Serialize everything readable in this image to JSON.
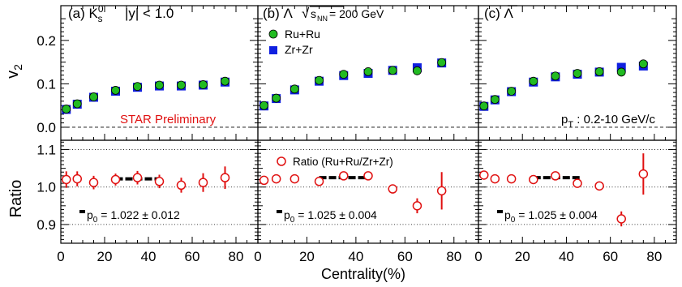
{
  "colors": {
    "ru": "#22bb22",
    "zr": "#1020e0",
    "ratio": "#e01010",
    "preliminary": "#e01010",
    "axis": "#000000"
  },
  "labels": {
    "xlabel": "Centrality(%)",
    "ylabel_top": "v₂",
    "ylabel_bottom": "Ratio",
    "preliminary": "STAR Preliminary",
    "pt_range": "p_T : 0.2-10 GeV/c",
    "energy": "√s_NN = 200 GeV",
    "legend_ru": "Ru+Ru",
    "legend_zr": "Zr+Zr",
    "legend_ratio": "Ratio (Ru+Ru/Zr+Zr)"
  },
  "chart_data": [
    {
      "type": "scatter",
      "panel": "(a) K_s^0",
      "title": "(a) K⁰s",
      "subtitle": "|y| < 1.0",
      "xlim": [
        0,
        90
      ],
      "top": {
        "ylabel": "v₂",
        "ylim": [
          -0.03,
          0.28
        ],
        "yticks": [
          "0.0",
          "0.1",
          "0.2"
        ],
        "series": [
          {
            "name": "Ru+Ru",
            "x": [
              2.5,
              7.5,
              15,
              25,
              35,
              45,
              55,
              65,
              75
            ],
            "values": [
              0.042,
              0.054,
              0.07,
              0.085,
              0.094,
              0.097,
              0.097,
              0.098,
              0.106
            ]
          },
          {
            "name": "Zr+Zr",
            "x": [
              2.5,
              7.5,
              15,
              25,
              35,
              45,
              55,
              65,
              75
            ],
            "values": [
              0.041,
              0.053,
              0.069,
              0.083,
              0.092,
              0.095,
              0.095,
              0.097,
              0.104
            ]
          }
        ]
      },
      "bottom": {
        "ylabel": "Ratio",
        "ylim": [
          0.85,
          1.125
        ],
        "yticks": [
          "0.9",
          "1.0",
          "1.1"
        ],
        "series": [
          {
            "name": "Ratio (Ru+Ru/Zr+Zr)",
            "x": [
              2.5,
              7.5,
              15,
              25,
              35,
              45,
              55,
              65,
              75
            ],
            "values": [
              1.02,
              1.022,
              1.012,
              1.02,
              1.025,
              1.015,
              1.005,
              1.012,
              1.025
            ],
            "errors": [
              0.022,
              0.02,
              0.018,
              0.016,
              0.018,
              0.018,
              0.02,
              0.025,
              0.03
            ]
          }
        ],
        "fit": {
          "label": "p₀ = 1.022 ± 0.012",
          "value": 1.022,
          "x": [
            25,
            46
          ]
        }
      }
    },
    {
      "type": "scatter",
      "panel": "(b) Λ",
      "title": "(b) Λ",
      "xlim": [
        0,
        90
      ],
      "top": {
        "ylim": [
          -0.03,
          0.28
        ],
        "series": [
          {
            "name": "Ru+Ru",
            "x": [
              2.5,
              7.5,
              15,
              25,
              35,
              45,
              55,
              65,
              75
            ],
            "values": [
              0.05,
              0.067,
              0.088,
              0.108,
              0.122,
              0.128,
              0.131,
              0.13,
              0.149
            ]
          },
          {
            "name": "Zr+Zr",
            "x": [
              2.5,
              7.5,
              15,
              25,
              35,
              45,
              55,
              65,
              75
            ],
            "values": [
              0.049,
              0.066,
              0.086,
              0.106,
              0.119,
              0.124,
              0.131,
              0.137,
              0.148
            ]
          }
        ]
      },
      "bottom": {
        "ylim": [
          0.85,
          1.125
        ],
        "series": [
          {
            "name": "Ratio (Ru+Ru/Zr+Zr)",
            "x": [
              2.5,
              7.5,
              15,
              25,
              35,
              45,
              55,
              65,
              75
            ],
            "values": [
              1.018,
              1.022,
              1.022,
              1.015,
              1.03,
              1.03,
              0.995,
              0.95,
              0.99
            ],
            "errors": [
              0.008,
              0.006,
              0.005,
              0.005,
              0.006,
              0.006,
              0.012,
              0.02,
              0.05
            ]
          }
        ],
        "fit": {
          "label": "p₀ = 1.025 ± 0.004",
          "value": 1.025,
          "x": [
            25,
            46
          ]
        }
      }
    },
    {
      "type": "scatter",
      "panel": "(c) anti-Λ",
      "title": "(c) Λ̄",
      "xlim": [
        0,
        90
      ],
      "top": {
        "ylim": [
          -0.03,
          0.28
        ],
        "series": [
          {
            "name": "Ru+Ru",
            "x": [
              2.5,
              7.5,
              15,
              25,
              35,
              45,
              55,
              65,
              75
            ],
            "values": [
              0.049,
              0.064,
              0.083,
              0.106,
              0.118,
              0.124,
              0.128,
              0.127,
              0.146
            ]
          },
          {
            "name": "Zr+Zr",
            "x": [
              2.5,
              7.5,
              15,
              25,
              35,
              45,
              55,
              65,
              75
            ],
            "values": [
              0.048,
              0.063,
              0.082,
              0.104,
              0.116,
              0.122,
              0.127,
              0.138,
              0.141
            ]
          }
        ]
      },
      "bottom": {
        "ylim": [
          0.85,
          1.125
        ],
        "series": [
          {
            "name": "Ratio (Ru+Ru/Zr+Zr)",
            "x": [
              2.5,
              7.5,
              15,
              25,
              35,
              45,
              55,
              65,
              75
            ],
            "values": [
              1.032,
              1.022,
              1.022,
              1.02,
              1.03,
              1.01,
              1.003,
              0.915,
              1.035
            ],
            "errors": [
              0.01,
              0.008,
              0.006,
              0.006,
              0.006,
              0.008,
              0.012,
              0.02,
              0.055
            ]
          }
        ],
        "fit": {
          "label": "p₀ = 1.025 ± 0.004",
          "value": 1.025,
          "x": [
            25,
            46
          ]
        }
      }
    }
  ]
}
